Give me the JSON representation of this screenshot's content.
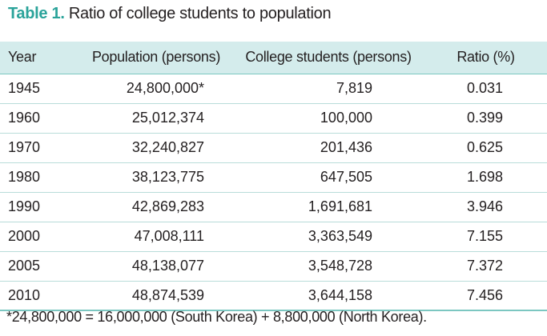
{
  "title": {
    "label": "Table 1.",
    "text": "Ratio of college students to population"
  },
  "table": {
    "headers": [
      "Year",
      "Population (persons)",
      "College students (persons)",
      "Ratio (%)"
    ],
    "rows": [
      [
        "1945",
        "24,800,000*",
        "7,819",
        "0.031"
      ],
      [
        "1960",
        "25,012,374",
        "100,000",
        "0.399"
      ],
      [
        "1970",
        "32,240,827",
        "201,436",
        "0.625"
      ],
      [
        "1980",
        "38,123,775",
        "647,505",
        "1.698"
      ],
      [
        "1990",
        "42,869,283",
        "1,691,681",
        "3.946"
      ],
      [
        "2000",
        "47,008,111",
        "3,363,549",
        "7.155"
      ],
      [
        "2005",
        "48,138,077",
        "3,548,728",
        "7.372"
      ],
      [
        "2010",
        "48,874,539",
        "3,644,158",
        "7.456"
      ]
    ]
  },
  "footnote": "*24,800,000 = 16,000,000 (South Korea) + 8,800,000 (North Korea).",
  "colors": {
    "accent": "#2aa39a",
    "header_bg": "#d4ecec",
    "row_rule": "#b8dcd9"
  }
}
